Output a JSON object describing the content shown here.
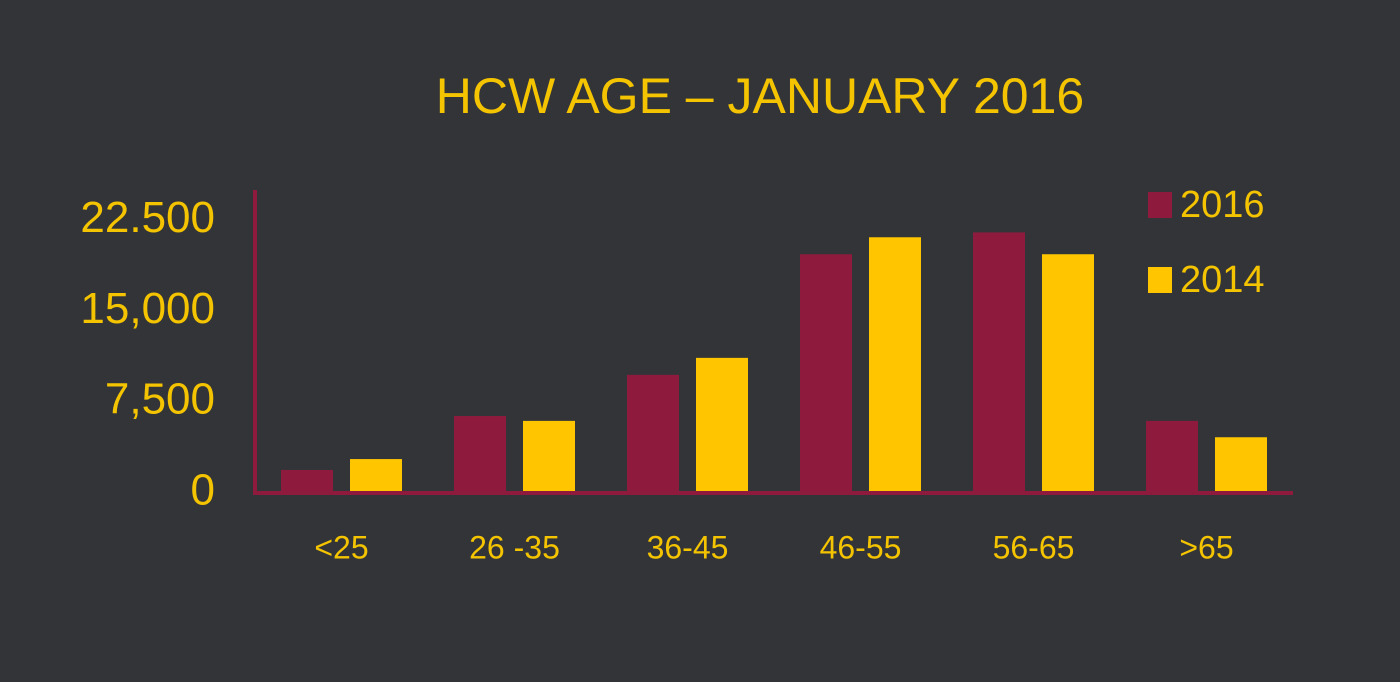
{
  "chart_data": {
    "type": "bar",
    "title": "HCW AGE – JANUARY 2016",
    "categories": [
      "<25",
      "26 -35",
      "36-45",
      "46-55",
      "56-65",
      ">65"
    ],
    "series": [
      {
        "name": "2016",
        "color": "#8e1b3e",
        "values": [
          1900,
          6350,
          9750,
          19700,
          21500,
          5950
        ]
      },
      {
        "name": "2014",
        "color": "#ffc600",
        "values": [
          2800,
          5950,
          11150,
          21100,
          19700,
          4600
        ]
      }
    ],
    "ylim": [
      0,
      25000
    ],
    "yticks": [
      0,
      {
        "value": 7500,
        "label": "7,500"
      },
      {
        "value": 15000,
        "label": "15,000"
      },
      {
        "value": 22500,
        "label": "22.500"
      }
    ],
    "grid": false,
    "legend": "top-right"
  }
}
